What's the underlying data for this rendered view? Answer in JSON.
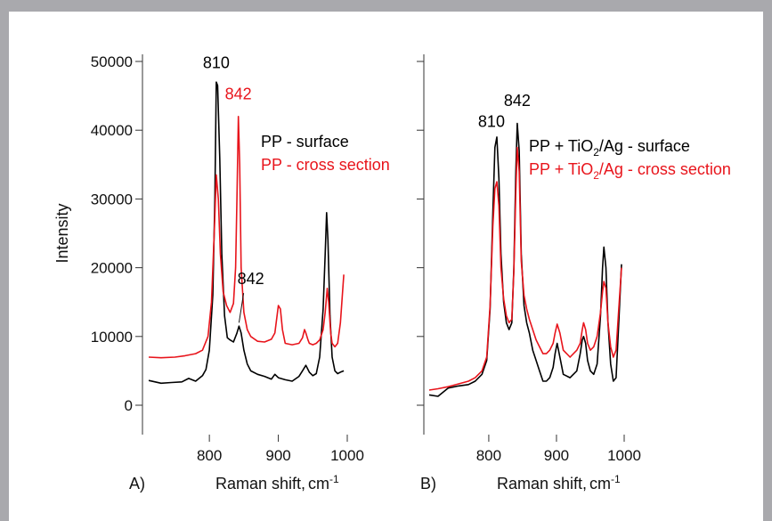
{
  "figure": {
    "background_color": "#a9a9ad",
    "colors": {
      "surface": "#000000",
      "cross_section": "#e8141b"
    }
  },
  "chart_data": [
    {
      "type": "line",
      "panel_label": "A)",
      "xlabel": "Raman shift,",
      "xlabel_unit": "cm",
      "xlabel_unit_exp": "-1",
      "ylabel": "Intensity",
      "xlim": [
        712,
        1000
      ],
      "ylim": [
        0,
        50000
      ],
      "xticks": [
        800,
        900,
        1000
      ],
      "yticks": [
        0,
        10000,
        20000,
        30000,
        40000,
        50000
      ],
      "show_yticklabels": true,
      "legend": [
        {
          "text": "PP - surface",
          "color": "#000000"
        },
        {
          "text": "PP - cross section",
          "color": "#e8141b"
        }
      ],
      "annotations": [
        {
          "text": "810",
          "x": 810,
          "y": 49000,
          "color": "#000000"
        },
        {
          "text": "842",
          "x": 842,
          "y": 44500,
          "color": "#e8141b"
        },
        {
          "text": "842",
          "x": 860,
          "y": 17600,
          "color": "#000000",
          "arrow_to": [
            843,
            12000
          ]
        }
      ],
      "series": [
        {
          "name": "PP - surface",
          "color": "#000000",
          "x": [
            712,
            730,
            745,
            760,
            770,
            780,
            790,
            795,
            800,
            805,
            808,
            810,
            812,
            815,
            818,
            822,
            826,
            830,
            835,
            840,
            843,
            846,
            850,
            855,
            860,
            870,
            880,
            890,
            895,
            900,
            910,
            920,
            930,
            935,
            940,
            945,
            950,
            955,
            960,
            965,
            968,
            970,
            972,
            975,
            978,
            982,
            986,
            990,
            995
          ],
          "y": [
            3600,
            3200,
            3300,
            3400,
            3900,
            3500,
            4300,
            5200,
            8000,
            16000,
            30000,
            47000,
            46500,
            36000,
            22000,
            13000,
            9800,
            9500,
            9200,
            10500,
            11500,
            10500,
            8000,
            6000,
            5000,
            4500,
            4200,
            3800,
            4500,
            4000,
            3700,
            3500,
            4200,
            5000,
            5800,
            4800,
            4300,
            4600,
            7000,
            14000,
            22000,
            28000,
            24000,
            13000,
            7000,
            5000,
            4600,
            4800,
            5000
          ]
        },
        {
          "name": "PP - cross section",
          "color": "#e8141b",
          "x": [
            712,
            730,
            750,
            765,
            780,
            790,
            798,
            803,
            807,
            810,
            813,
            816,
            820,
            825,
            830,
            835,
            838,
            840,
            842,
            844,
            846,
            850,
            855,
            860,
            870,
            880,
            890,
            895,
            900,
            903,
            906,
            910,
            920,
            930,
            935,
            938,
            940,
            943,
            945,
            950,
            955,
            960,
            965,
            968,
            971,
            973,
            976,
            978,
            982,
            986,
            990,
            995
          ],
          "y": [
            7000,
            6900,
            7000,
            7200,
            7500,
            8000,
            10000,
            15000,
            25000,
            33500,
            30000,
            22000,
            16500,
            14500,
            13500,
            14800,
            20000,
            30000,
            42000,
            35000,
            20000,
            13500,
            11000,
            10000,
            9300,
            9200,
            9600,
            10500,
            14500,
            14000,
            11000,
            9000,
            8800,
            9000,
            9800,
            11000,
            10500,
            9500,
            9000,
            8800,
            9000,
            9500,
            11000,
            13500,
            17000,
            15000,
            10500,
            9000,
            8500,
            9000,
            12000,
            19000
          ]
        }
      ]
    },
    {
      "type": "line",
      "panel_label": "B)",
      "xlabel": "Raman shift,",
      "xlabel_unit": "cm",
      "xlabel_unit_exp": "-1",
      "ylabel": "",
      "xlim": [
        712,
        1000
      ],
      "ylim": [
        0,
        50000
      ],
      "xticks": [
        800,
        900,
        1000
      ],
      "yticks": [
        0,
        10000,
        20000,
        30000,
        40000,
        50000
      ],
      "show_yticklabels": false,
      "legend": [
        {
          "text": "PP + TiO",
          "sub": "2",
          "text2": "/Ag - surface",
          "color": "#000000"
        },
        {
          "text": "PP + TiO",
          "sub": "2",
          "text2": "/Ag - cross section",
          "color": "#e8141b"
        }
      ],
      "annotations": [
        {
          "text": "810",
          "x": 804,
          "y": 40500,
          "color": "#000000"
        },
        {
          "text": "842",
          "x": 842,
          "y": 43500,
          "color": "#000000"
        }
      ],
      "series": [
        {
          "name": "PP + TiO2/Ag - surface",
          "color": "#000000",
          "x": [
            712,
            725,
            740,
            755,
            770,
            780,
            790,
            797,
            802,
            806,
            809,
            812,
            815,
            818,
            822,
            826,
            830,
            834,
            837,
            840,
            842,
            845,
            848,
            852,
            856,
            860,
            865,
            870,
            875,
            880,
            885,
            890,
            895,
            898,
            901,
            905,
            910,
            920,
            930,
            935,
            938,
            940,
            943,
            946,
            950,
            955,
            960,
            965,
            968,
            970,
            973,
            976,
            980,
            984,
            988,
            992,
            996
          ],
          "y": [
            1500,
            1300,
            2500,
            2800,
            3000,
            3500,
            4500,
            6500,
            14000,
            28000,
            37500,
            39000,
            33000,
            22000,
            15000,
            12000,
            11000,
            12000,
            20000,
            34000,
            41000,
            37000,
            22000,
            14500,
            12000,
            10500,
            8000,
            6500,
            5000,
            3500,
            3500,
            4000,
            5500,
            7500,
            9000,
            7000,
            4500,
            4000,
            5000,
            7500,
            9500,
            10000,
            9000,
            6500,
            5000,
            4500,
            6000,
            13000,
            20000,
            23000,
            20000,
            12000,
            6000,
            3500,
            4000,
            12000,
            20500
          ]
        },
        {
          "name": "PP + TiO2/Ag - cross section",
          "color": "#e8141b",
          "x": [
            712,
            725,
            740,
            755,
            770,
            780,
            790,
            797,
            802,
            806,
            809,
            812,
            815,
            818,
            822,
            826,
            830,
            834,
            837,
            840,
            842,
            845,
            848,
            852,
            856,
            860,
            865,
            870,
            875,
            880,
            885,
            890,
            895,
            898,
            901,
            905,
            910,
            920,
            930,
            935,
            938,
            940,
            943,
            946,
            950,
            955,
            960,
            965,
            968,
            970,
            973,
            976,
            980,
            984,
            988,
            992,
            996
          ],
          "y": [
            2200,
            2400,
            2700,
            3100,
            3500,
            4000,
            5000,
            7000,
            14500,
            26000,
            31500,
            32500,
            29000,
            20000,
            15500,
            13000,
            12000,
            12500,
            19500,
            31000,
            37500,
            34000,
            21000,
            16000,
            14000,
            12500,
            11000,
            9500,
            8500,
            7500,
            7500,
            8000,
            9000,
            10500,
            11800,
            10500,
            8000,
            7000,
            8000,
            9000,
            11000,
            12000,
            11000,
            9000,
            8000,
            8500,
            10000,
            13500,
            16500,
            18000,
            17000,
            12000,
            8500,
            7000,
            8000,
            14000,
            20000
          ]
        }
      ]
    }
  ]
}
